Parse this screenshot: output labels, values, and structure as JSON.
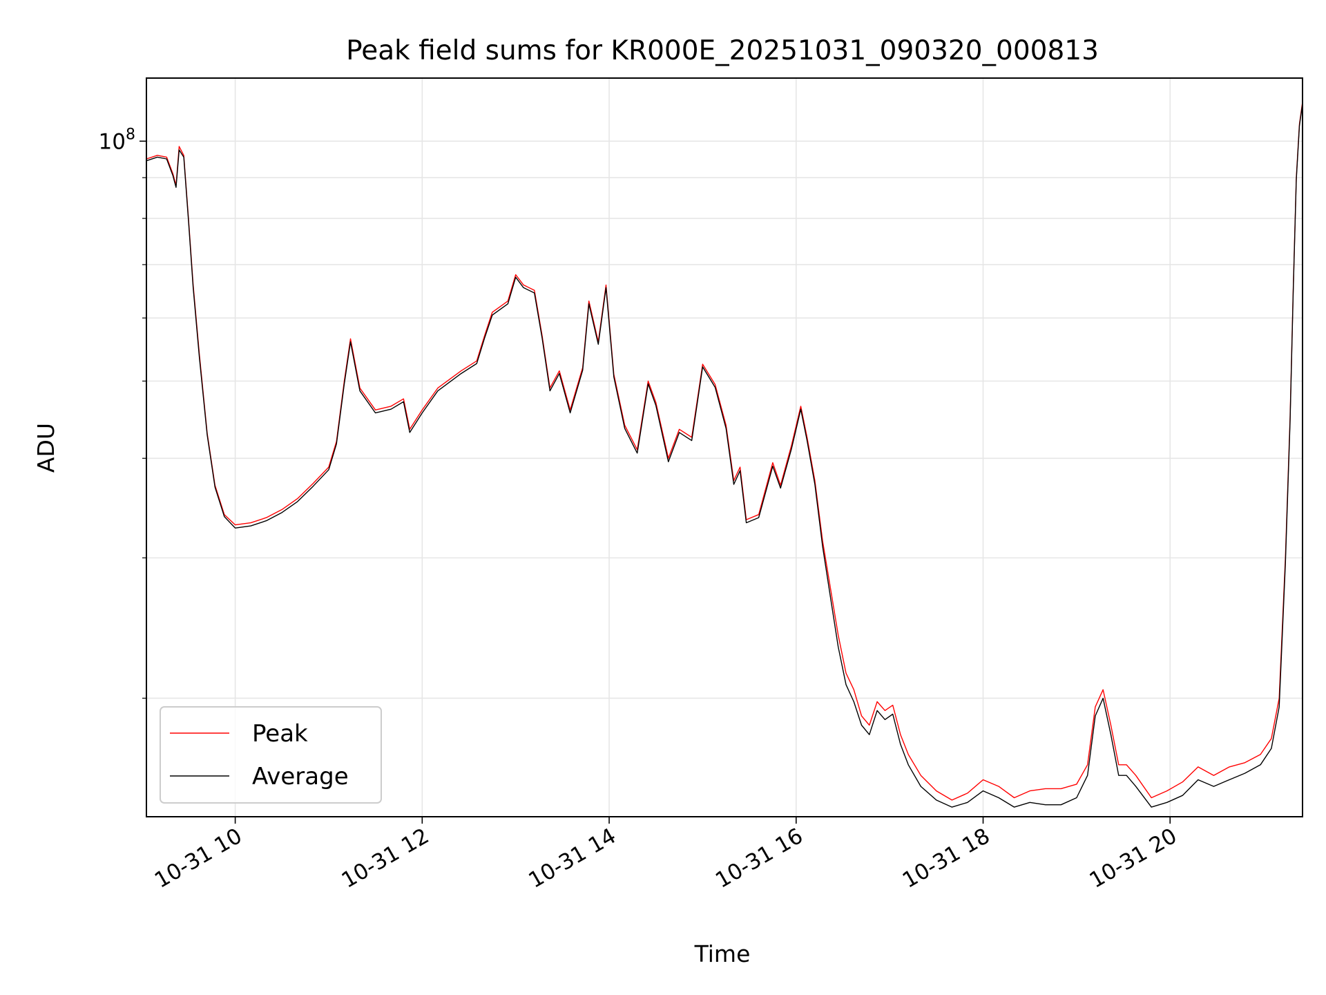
{
  "chart_data": {
    "type": "line",
    "title": "Peak field sums for KR000E_20251031_090320_000813",
    "xlabel": "Time",
    "ylabel": "ADU",
    "y_scale": "log",
    "xlim": [
      "2025-10-31 09:03",
      "2025-10-31 21:25"
    ],
    "ylim": [
      14200000,
      120000000
    ],
    "x_ticks": [
      "2025-10-31 10:00",
      "2025-10-31 12:00",
      "2025-10-31 14:00",
      "2025-10-31 16:00",
      "2025-10-31 18:00",
      "2025-10-31 20:00"
    ],
    "x_tick_labels": [
      "10-31 10",
      "10-31 12",
      "10-31 14",
      "10-31 16",
      "10-31 18",
      "10-31 20"
    ],
    "y_major_ticks": [
      100000000
    ],
    "y_major_labels": [
      {
        "base": "10",
        "exp": "8"
      }
    ],
    "y_minor_ticks": [
      20000000,
      30000000,
      40000000,
      50000000,
      60000000,
      70000000,
      80000000,
      90000000
    ],
    "grid": true,
    "legend_position": "lower-left",
    "colors": {
      "Peak": "#ff0000",
      "Average": "#000000"
    },
    "series": [
      {
        "name": "Peak",
        "points": [
          [
            "2025-10-31 09:03",
            95000000
          ],
          [
            "2025-10-31 09:10",
            96000000
          ],
          [
            "2025-10-31 09:16",
            95500000
          ],
          [
            "2025-10-31 09:20",
            91000000
          ],
          [
            "2025-10-31 09:22",
            88000000
          ],
          [
            "2025-10-31 09:24",
            98500000
          ],
          [
            "2025-10-31 09:27",
            96000000
          ],
          [
            "2025-10-31 09:30",
            80000000
          ],
          [
            "2025-10-31 09:33",
            66000000
          ],
          [
            "2025-10-31 09:37",
            54000000
          ],
          [
            "2025-10-31 09:42",
            43000000
          ],
          [
            "2025-10-31 09:47",
            37000000
          ],
          [
            "2025-10-31 09:53",
            34000000
          ],
          [
            "2025-10-31 10:00",
            33000000
          ],
          [
            "2025-10-31 10:10",
            33200000
          ],
          [
            "2025-10-31 10:20",
            33700000
          ],
          [
            "2025-10-31 10:30",
            34500000
          ],
          [
            "2025-10-31 10:40",
            35600000
          ],
          [
            "2025-10-31 10:50",
            37200000
          ],
          [
            "2025-10-31 11:00",
            39000000
          ],
          [
            "2025-10-31 11:05",
            42000000
          ],
          [
            "2025-10-31 11:10",
            50000000
          ],
          [
            "2025-10-31 11:14",
            56500000
          ],
          [
            "2025-10-31 11:20",
            49000000
          ],
          [
            "2025-10-31 11:30",
            46000000
          ],
          [
            "2025-10-31 11:40",
            46500000
          ],
          [
            "2025-10-31 11:48",
            47500000
          ],
          [
            "2025-10-31 11:52",
            43500000
          ],
          [
            "2025-10-31 12:00",
            46000000
          ],
          [
            "2025-10-31 12:10",
            49000000
          ],
          [
            "2025-10-31 12:25",
            51500000
          ],
          [
            "2025-10-31 12:35",
            53000000
          ],
          [
            "2025-10-31 12:40",
            57000000
          ],
          [
            "2025-10-31 12:45",
            61000000
          ],
          [
            "2025-10-31 12:55",
            63000000
          ],
          [
            "2025-10-31 13:00",
            68000000
          ],
          [
            "2025-10-31 13:05",
            66000000
          ],
          [
            "2025-10-31 13:12",
            65000000
          ],
          [
            "2025-10-31 13:17",
            57000000
          ],
          [
            "2025-10-31 13:22",
            49000000
          ],
          [
            "2025-10-31 13:28",
            51500000
          ],
          [
            "2025-10-31 13:35",
            46000000
          ],
          [
            "2025-10-31 13:43",
            52000000
          ],
          [
            "2025-10-31 13:47",
            63000000
          ],
          [
            "2025-10-31 13:53",
            56000000
          ],
          [
            "2025-10-31 13:58",
            66000000
          ],
          [
            "2025-10-31 14:03",
            51000000
          ],
          [
            "2025-10-31 14:10",
            44000000
          ],
          [
            "2025-10-31 14:18",
            41000000
          ],
          [
            "2025-10-31 14:25",
            50000000
          ],
          [
            "2025-10-31 14:30",
            47000000
          ],
          [
            "2025-10-31 14:38",
            40000000
          ],
          [
            "2025-10-31 14:45",
            43500000
          ],
          [
            "2025-10-31 14:53",
            42500000
          ],
          [
            "2025-10-31 15:00",
            52500000
          ],
          [
            "2025-10-31 15:08",
            49500000
          ],
          [
            "2025-10-31 15:15",
            44000000
          ],
          [
            "2025-10-31 15:20",
            37500000
          ],
          [
            "2025-10-31 15:24",
            39000000
          ],
          [
            "2025-10-31 15:28",
            33500000
          ],
          [
            "2025-10-31 15:36",
            34000000
          ],
          [
            "2025-10-31 15:45",
            39500000
          ],
          [
            "2025-10-31 15:50",
            37000000
          ],
          [
            "2025-10-31 15:57",
            41500000
          ],
          [
            "2025-10-31 16:03",
            46500000
          ],
          [
            "2025-10-31 16:07",
            42500000
          ],
          [
            "2025-10-31 16:12",
            37500000
          ],
          [
            "2025-10-31 16:17",
            31500000
          ],
          [
            "2025-10-31 16:22",
            27500000
          ],
          [
            "2025-10-31 16:27",
            24000000
          ],
          [
            "2025-10-31 16:32",
            21500000
          ],
          [
            "2025-10-31 16:37",
            20500000
          ],
          [
            "2025-10-31 16:42",
            19000000
          ],
          [
            "2025-10-31 16:47",
            18500000
          ],
          [
            "2025-10-31 16:52",
            19800000
          ],
          [
            "2025-10-31 16:57",
            19300000
          ],
          [
            "2025-10-31 17:02",
            19600000
          ],
          [
            "2025-10-31 17:07",
            18000000
          ],
          [
            "2025-10-31 17:12",
            17000000
          ],
          [
            "2025-10-31 17:20",
            16000000
          ],
          [
            "2025-10-31 17:30",
            15300000
          ],
          [
            "2025-10-31 17:40",
            14900000
          ],
          [
            "2025-10-31 17:50",
            15200000
          ],
          [
            "2025-10-31 18:00",
            15800000
          ],
          [
            "2025-10-31 18:10",
            15500000
          ],
          [
            "2025-10-31 18:20",
            15000000
          ],
          [
            "2025-10-31 18:30",
            15300000
          ],
          [
            "2025-10-31 18:40",
            15400000
          ],
          [
            "2025-10-31 18:50",
            15400000
          ],
          [
            "2025-10-31 19:00",
            15600000
          ],
          [
            "2025-10-31 19:07",
            16500000
          ],
          [
            "2025-10-31 19:12",
            19500000
          ],
          [
            "2025-10-31 19:17",
            20500000
          ],
          [
            "2025-10-31 19:22",
            18500000
          ],
          [
            "2025-10-31 19:27",
            16500000
          ],
          [
            "2025-10-31 19:32",
            16500000
          ],
          [
            "2025-10-31 19:38",
            16000000
          ],
          [
            "2025-10-31 19:48",
            15000000
          ],
          [
            "2025-10-31 19:58",
            15300000
          ],
          [
            "2025-10-31 20:08",
            15700000
          ],
          [
            "2025-10-31 20:18",
            16400000
          ],
          [
            "2025-10-31 20:28",
            16000000
          ],
          [
            "2025-10-31 20:38",
            16400000
          ],
          [
            "2025-10-31 20:48",
            16600000
          ],
          [
            "2025-10-31 20:58",
            17000000
          ],
          [
            "2025-10-31 21:05",
            17800000
          ],
          [
            "2025-10-31 21:10",
            20000000
          ],
          [
            "2025-10-31 21:14",
            30000000
          ],
          [
            "2025-10-31 21:17",
            45000000
          ],
          [
            "2025-10-31 21:19",
            65000000
          ],
          [
            "2025-10-31 21:21",
            90000000
          ],
          [
            "2025-10-31 21:23",
            105000000
          ],
          [
            "2025-10-31 21:25",
            112000000
          ]
        ]
      },
      {
        "name": "Average",
        "points": [
          [
            "2025-10-31 09:03",
            94500000
          ],
          [
            "2025-10-31 09:10",
            95500000
          ],
          [
            "2025-10-31 09:16",
            95000000
          ],
          [
            "2025-10-31 09:20",
            90500000
          ],
          [
            "2025-10-31 09:22",
            87500000
          ],
          [
            "2025-10-31 09:24",
            97500000
          ],
          [
            "2025-10-31 09:27",
            95500000
          ],
          [
            "2025-10-31 09:30",
            79500000
          ],
          [
            "2025-10-31 09:33",
            65500000
          ],
          [
            "2025-10-31 09:37",
            53500000
          ],
          [
            "2025-10-31 09:42",
            42800000
          ],
          [
            "2025-10-31 09:47",
            36800000
          ],
          [
            "2025-10-31 09:53",
            33800000
          ],
          [
            "2025-10-31 10:00",
            32700000
          ],
          [
            "2025-10-31 10:10",
            32900000
          ],
          [
            "2025-10-31 10:20",
            33400000
          ],
          [
            "2025-10-31 10:30",
            34200000
          ],
          [
            "2025-10-31 10:40",
            35300000
          ],
          [
            "2025-10-31 10:50",
            36900000
          ],
          [
            "2025-10-31 11:00",
            38700000
          ],
          [
            "2025-10-31 11:05",
            41700000
          ],
          [
            "2025-10-31 11:10",
            49600000
          ],
          [
            "2025-10-31 11:14",
            56000000
          ],
          [
            "2025-10-31 11:20",
            48600000
          ],
          [
            "2025-10-31 11:30",
            45600000
          ],
          [
            "2025-10-31 11:40",
            46100000
          ],
          [
            "2025-10-31 11:48",
            47100000
          ],
          [
            "2025-10-31 11:52",
            43100000
          ],
          [
            "2025-10-31 12:00",
            45600000
          ],
          [
            "2025-10-31 12:10",
            48600000
          ],
          [
            "2025-10-31 12:25",
            51100000
          ],
          [
            "2025-10-31 12:35",
            52600000
          ],
          [
            "2025-10-31 12:40",
            56600000
          ],
          [
            "2025-10-31 12:45",
            60500000
          ],
          [
            "2025-10-31 12:55",
            62500000
          ],
          [
            "2025-10-31 13:00",
            67500000
          ],
          [
            "2025-10-31 13:05",
            65500000
          ],
          [
            "2025-10-31 13:12",
            64500000
          ],
          [
            "2025-10-31 13:17",
            56600000
          ],
          [
            "2025-10-31 13:22",
            48600000
          ],
          [
            "2025-10-31 13:28",
            51100000
          ],
          [
            "2025-10-31 13:35",
            45600000
          ],
          [
            "2025-10-31 13:43",
            51600000
          ],
          [
            "2025-10-31 13:47",
            62500000
          ],
          [
            "2025-10-31 13:53",
            55600000
          ],
          [
            "2025-10-31 13:58",
            65500000
          ],
          [
            "2025-10-31 14:03",
            50600000
          ],
          [
            "2025-10-31 14:10",
            43600000
          ],
          [
            "2025-10-31 14:18",
            40600000
          ],
          [
            "2025-10-31 14:25",
            49600000
          ],
          [
            "2025-10-31 14:30",
            46600000
          ],
          [
            "2025-10-31 14:38",
            39600000
          ],
          [
            "2025-10-31 14:45",
            43100000
          ],
          [
            "2025-10-31 14:53",
            42100000
          ],
          [
            "2025-10-31 15:00",
            52100000
          ],
          [
            "2025-10-31 15:08",
            49100000
          ],
          [
            "2025-10-31 15:15",
            43600000
          ],
          [
            "2025-10-31 15:20",
            37100000
          ],
          [
            "2025-10-31 15:24",
            38600000
          ],
          [
            "2025-10-31 15:28",
            33200000
          ],
          [
            "2025-10-31 15:36",
            33700000
          ],
          [
            "2025-10-31 15:45",
            39100000
          ],
          [
            "2025-10-31 15:50",
            36700000
          ],
          [
            "2025-10-31 15:57",
            41100000
          ],
          [
            "2025-10-31 16:03",
            46100000
          ],
          [
            "2025-10-31 16:07",
            42100000
          ],
          [
            "2025-10-31 16:12",
            37100000
          ],
          [
            "2025-10-31 16:17",
            31000000
          ],
          [
            "2025-10-31 16:22",
            26800000
          ],
          [
            "2025-10-31 16:27",
            23200000
          ],
          [
            "2025-10-31 16:32",
            20800000
          ],
          [
            "2025-10-31 16:37",
            19800000
          ],
          [
            "2025-10-31 16:42",
            18500000
          ],
          [
            "2025-10-31 16:47",
            18000000
          ],
          [
            "2025-10-31 16:52",
            19300000
          ],
          [
            "2025-10-31 16:57",
            18800000
          ],
          [
            "2025-10-31 17:02",
            19100000
          ],
          [
            "2025-10-31 17:07",
            17500000
          ],
          [
            "2025-10-31 17:12",
            16500000
          ],
          [
            "2025-10-31 17:20",
            15500000
          ],
          [
            "2025-10-31 17:30",
            14900000
          ],
          [
            "2025-10-31 17:40",
            14600000
          ],
          [
            "2025-10-31 17:50",
            14800000
          ],
          [
            "2025-10-31 18:00",
            15300000
          ],
          [
            "2025-10-31 18:10",
            15000000
          ],
          [
            "2025-10-31 18:20",
            14600000
          ],
          [
            "2025-10-31 18:30",
            14800000
          ],
          [
            "2025-10-31 18:40",
            14700000
          ],
          [
            "2025-10-31 18:50",
            14700000
          ],
          [
            "2025-10-31 19:00",
            15000000
          ],
          [
            "2025-10-31 19:07",
            16000000
          ],
          [
            "2025-10-31 19:12",
            19000000
          ],
          [
            "2025-10-31 19:17",
            20000000
          ],
          [
            "2025-10-31 19:22",
            18000000
          ],
          [
            "2025-10-31 19:27",
            16000000
          ],
          [
            "2025-10-31 19:32",
            16000000
          ],
          [
            "2025-10-31 19:38",
            15500000
          ],
          [
            "2025-10-31 19:48",
            14600000
          ],
          [
            "2025-10-31 19:58",
            14800000
          ],
          [
            "2025-10-31 20:08",
            15100000
          ],
          [
            "2025-10-31 20:18",
            15800000
          ],
          [
            "2025-10-31 20:28",
            15500000
          ],
          [
            "2025-10-31 20:38",
            15800000
          ],
          [
            "2025-10-31 20:48",
            16100000
          ],
          [
            "2025-10-31 20:58",
            16500000
          ],
          [
            "2025-10-31 21:05",
            17300000
          ],
          [
            "2025-10-31 21:10",
            19500000
          ],
          [
            "2025-10-31 21:14",
            29500000
          ],
          [
            "2025-10-31 21:17",
            44500000
          ],
          [
            "2025-10-31 21:19",
            64500000
          ],
          [
            "2025-10-31 21:21",
            89500000
          ],
          [
            "2025-10-31 21:23",
            104500000
          ],
          [
            "2025-10-31 21:25",
            111500000
          ]
        ]
      }
    ]
  }
}
